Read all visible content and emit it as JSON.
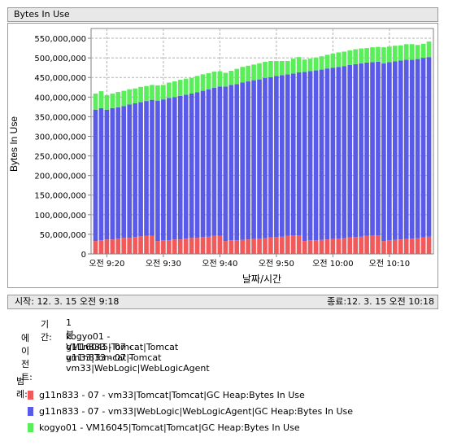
{
  "panel_title": "Bytes In Use",
  "range": {
    "start": "시작: 12. 3. 15 오전 9:18",
    "end": "종료:12. 3. 15 오전 10:18"
  },
  "info": {
    "period_label": "기간:",
    "period_value": "1 분",
    "agents_label": "에이전트:",
    "agents": [
      "kogyo01 - VM16045|Tomcat|Tomcat",
      "g11n833 - 07 - vm33|Tomcat|Tomcat",
      "g11n833 - 07 - vm33|WebLogic|WebLogicAgent"
    ]
  },
  "legend": {
    "heading": "범례:",
    "items": [
      {
        "label": "g11n833 - 07 - vm33|Tomcat|Tomcat|GC Heap:Bytes In Use",
        "color": "#f05a5a"
      },
      {
        "label": "g11n833 - 07 - vm33|WebLogic|WebLogicAgent|GC Heap:Bytes In Use",
        "color": "#5a5ae8"
      },
      {
        "label": "kogyo01 - VM16045|Tomcat|Tomcat|GC Heap:Bytes In Use",
        "color": "#5aef5a"
      }
    ]
  },
  "chart_data": {
    "type": "bar",
    "stacked": true,
    "title": "",
    "xlabel": "날짜/시간",
    "ylabel": "Bytes In Use",
    "ylim": [
      0,
      575000000
    ],
    "yticks": [
      0,
      50000000,
      100000000,
      150000000,
      200000000,
      250000000,
      300000000,
      350000000,
      400000000,
      450000000,
      500000000,
      550000000
    ],
    "ytick_labels": [
      "0",
      "50,000,000",
      "100,000,000",
      "150,000,000",
      "200,000,000",
      "250,000,000",
      "300,000,000",
      "350,000,000",
      "400,000,000",
      "450,000,000",
      "500,000,000",
      "550,000,000"
    ],
    "xticks": [
      "오전 9:20",
      "오전 9:30",
      "오전 9:40",
      "오전 9:50",
      "오전 10:00",
      "오전 10:10"
    ],
    "xtick_positions": [
      2,
      12,
      22,
      32,
      42,
      52
    ],
    "grid": true,
    "categories": [
      "9:18",
      "9:19",
      "9:20",
      "9:21",
      "9:22",
      "9:23",
      "9:24",
      "9:25",
      "9:26",
      "9:27",
      "9:28",
      "9:29",
      "9:30",
      "9:31",
      "9:32",
      "9:33",
      "9:34",
      "9:35",
      "9:36",
      "9:37",
      "9:38",
      "9:39",
      "9:40",
      "9:41",
      "9:42",
      "9:43",
      "9:44",
      "9:45",
      "9:46",
      "9:47",
      "9:48",
      "9:49",
      "9:50",
      "9:51",
      "9:52",
      "9:53",
      "9:54",
      "9:55",
      "9:56",
      "9:57",
      "9:58",
      "9:59",
      "10:00",
      "10:01",
      "10:02",
      "10:03",
      "10:04",
      "10:05",
      "10:06",
      "10:07",
      "10:08",
      "10:09",
      "10:10",
      "10:11",
      "10:12",
      "10:13",
      "10:14",
      "10:15",
      "10:16",
      "10:17"
    ],
    "series": [
      {
        "name": "g11n833 - 07 - vm33|Tomcat|Tomcat|GC Heap:Bytes In Use",
        "color": "#f05a5a",
        "values": [
          33000000,
          35000000,
          37000000,
          37000000,
          39000000,
          41000000,
          41000000,
          43000000,
          45000000,
          46000000,
          46000000,
          33000000,
          35000000,
          35000000,
          37000000,
          37000000,
          39000000,
          41000000,
          41000000,
          43000000,
          44000000,
          46000000,
          46000000,
          33000000,
          35000000,
          35000000,
          36000000,
          37000000,
          38000000,
          39000000,
          40000000,
          42000000,
          43000000,
          44000000,
          46000000,
          47000000,
          47000000,
          33000000,
          35000000,
          35000000,
          36000000,
          37000000,
          38000000,
          39000000,
          40000000,
          42000000,
          43000000,
          44000000,
          46000000,
          47000000,
          47000000,
          33000000,
          35000000,
          36000000,
          37000000,
          38000000,
          39000000,
          40000000,
          42000000,
          44000000
        ]
      },
      {
        "name": "g11n833 - 07 - vm33|WebLogic|WebLogicAgent|GC Heap:Bytes In Use",
        "color": "#5a5ae8",
        "values": [
          335000000,
          337000000,
          331000000,
          335000000,
          335000000,
          336000000,
          340000000,
          341000000,
          342000000,
          344000000,
          347000000,
          358000000,
          359000000,
          363000000,
          363000000,
          366000000,
          367000000,
          368000000,
          371000000,
          373000000,
          376000000,
          378000000,
          381000000,
          394000000,
          396000000,
          398000000,
          401000000,
          403000000,
          405000000,
          406000000,
          409000000,
          409000000,
          411000000,
          412000000,
          412000000,
          413000000,
          416000000,
          431000000,
          431000000,
          433000000,
          434000000,
          436000000,
          437000000,
          438000000,
          439000000,
          440000000,
          441000000,
          442000000,
          442000000,
          442000000,
          443000000,
          453000000,
          454000000,
          455000000,
          456000000,
          457000000,
          456000000,
          457000000,
          458000000,
          458000000
        ]
      },
      {
        "name": "kogyo01 - VM16045|Tomcat|Tomcat|GC Heap:Bytes In Use",
        "color": "#5aef5a",
        "values": [
          41000000,
          43000000,
          37000000,
          37000000,
          39000000,
          39000000,
          39000000,
          38000000,
          39000000,
          38000000,
          38000000,
          39000000,
          37000000,
          39000000,
          40000000,
          41000000,
          41000000,
          40000000,
          42000000,
          42000000,
          41000000,
          41000000,
          39000000,
          35000000,
          36000000,
          39000000,
          40000000,
          40000000,
          40000000,
          41000000,
          41000000,
          41000000,
          38000000,
          36000000,
          34000000,
          38000000,
          39000000,
          32000000,
          32000000,
          33000000,
          34000000,
          35000000,
          36000000,
          37000000,
          37000000,
          37000000,
          38000000,
          38000000,
          37000000,
          38000000,
          38000000,
          41000000,
          40000000,
          40000000,
          39000000,
          40000000,
          40000000,
          36000000,
          36000000,
          40000000
        ]
      }
    ]
  }
}
